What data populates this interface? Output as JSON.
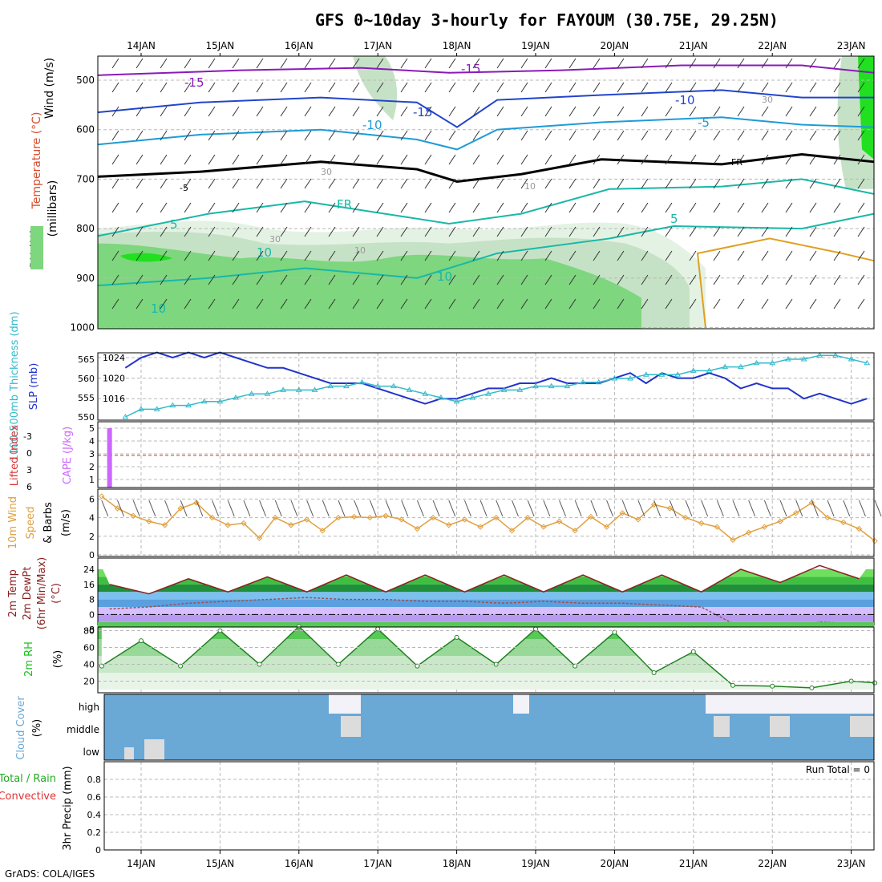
{
  "title": "GFS 0~10day 3-hourly for FAYOUM (30.75E, 29.25N)",
  "footer": "GrADS: COLA/IGES",
  "colors": {
    "rh_light": "#e4f2e4",
    "rh_mid": "#c6e2c6",
    "rh_dark": "#a9cfa9",
    "rh_green": "#7ed67e",
    "rh_bright": "#20e020",
    "temp_purple": "#8a1ab8",
    "temp_blue": "#2244cc",
    "temp_cyan": "#1e9bd6",
    "temp_teal": "#18b8a8",
    "temp_orange": "#e0a020",
    "slp": "#2233cc",
    "thickness": "#33bbcc",
    "cape": "#cc66ff",
    "lifted": "#dd3333",
    "wind10": "#e0a040",
    "temp2m": "#8b2020",
    "dewpt": "#a05050",
    "rh2m": "#20c020",
    "cloud": "#6aa8d6",
    "cloud_white": "#f2f2f8",
    "cloud_gray": "#dcdcdc"
  },
  "charts": {
    "upper": {
      "type": "contour",
      "ylabels": [
        "Wind (m/s)",
        "Temperature (°C)",
        "RH (%)",
        "(millibars)"
      ],
      "levels": [
        500,
        600,
        700,
        800,
        900,
        1000
      ],
      "contour_labels": [
        "-15",
        "-15",
        "-15",
        "-10",
        "-10",
        "-5",
        "-5",
        "FR",
        "FR",
        "5",
        "5",
        "10",
        "10",
        "10",
        "10",
        "30",
        "30",
        "30",
        "10"
      ]
    },
    "slp": {
      "ylabel_left": "1000-500mb Thickness (dm)",
      "ylabel_right": "SLP (mb)",
      "left_ticks": [
        "565",
        "560",
        "555",
        "550"
      ],
      "right_ticks": [
        "1024",
        "1020",
        "1016"
      ]
    },
    "cape": {
      "ylabel_left": "Lifted Index",
      "ylabel_right": "CAPE (J/kg)",
      "left_ticks": [
        "-3",
        "0",
        "3",
        "6"
      ],
      "right_ticks": [
        "5",
        "4",
        "3",
        "2",
        "1"
      ]
    },
    "wind10": {
      "ylabel": [
        "10m Wind",
        "Speed",
        "& Barbs",
        "(m/s)"
      ],
      "ticks": [
        "6",
        "4",
        "2",
        "0"
      ]
    },
    "temp2m": {
      "ylabel": [
        "2m Temp",
        "2m DewPt",
        "(6hr Min/Max)",
        "(°C)"
      ],
      "ticks": [
        "24",
        "16",
        "8",
        "0",
        "-8"
      ]
    },
    "rh2m": {
      "ylabel": [
        "2m RH",
        "(%)"
      ],
      "ticks": [
        "80",
        "60",
        "40",
        "20"
      ]
    },
    "cloud": {
      "ylabel": [
        "Cloud Cover",
        "(%)"
      ],
      "levels": [
        "high",
        "middle",
        "low"
      ]
    },
    "precip": {
      "ylabel": [
        "Total / Rain",
        "Convective",
        "3hr Precip (mm)"
      ],
      "ticks": [
        "0.8",
        "0.6",
        "0.4",
        "0.2",
        "0"
      ],
      "run_total": "Run Total = 0"
    }
  },
  "chart_data": [
    {
      "type": "line",
      "title": "SLP (mb)",
      "x": [
        "13.8",
        "14.0",
        "14.2",
        "14.4",
        "14.6",
        "14.8",
        "15.0",
        "15.2",
        "15.4",
        "15.6",
        "15.8",
        "16.0",
        "16.2",
        "16.4",
        "16.6",
        "16.8",
        "17.0",
        "17.2",
        "17.4",
        "17.6",
        "17.8",
        "18.0",
        "18.2",
        "18.4",
        "18.6",
        "18.8",
        "19.0",
        "19.2",
        "19.4",
        "19.6",
        "19.8",
        "20.0",
        "20.2",
        "20.4",
        "20.6",
        "20.8",
        "21.0",
        "21.2",
        "21.4",
        "21.6",
        "21.8",
        "22.0",
        "22.2",
        "22.4",
        "22.6",
        "22.8",
        "23.0",
        "23.2"
      ],
      "series": [
        {
          "name": "SLP",
          "values": [
            1022,
            1024,
            1025,
            1024,
            1025,
            1024,
            1025,
            1024,
            1023,
            1022,
            1022,
            1021,
            1020,
            1019,
            1019,
            1019,
            1018,
            1017,
            1016,
            1015,
            1016,
            1016,
            1017,
            1018,
            1018,
            1019,
            1019,
            1020,
            1019,
            1019,
            1019,
            1020,
            1021,
            1019,
            1021,
            1020,
            1020,
            1021,
            1020,
            1018,
            1019,
            1018,
            1018,
            1016,
            1017,
            1016,
            1015,
            1016
          ]
        },
        {
          "name": "Thickness",
          "values": [
            550,
            552,
            552,
            553,
            553,
            554,
            554,
            555,
            556,
            556,
            557,
            557,
            557,
            558,
            558,
            559,
            558,
            558,
            557,
            556,
            555,
            554,
            555,
            556,
            557,
            557,
            558,
            558,
            558,
            559,
            559,
            560,
            560,
            561,
            561,
            561,
            562,
            562,
            563,
            563,
            564,
            564,
            565,
            565,
            566,
            566,
            565,
            564
          ]
        }
      ]
    },
    {
      "type": "bar",
      "title": "CAPE (J/kg)",
      "categories": [
        "13.6"
      ],
      "values": [
        5
      ]
    },
    {
      "type": "line",
      "title": "10m Wind Speed (m/s)",
      "x": [
        "13.5",
        "13.7",
        "13.9",
        "14.1",
        "14.3",
        "14.5",
        "14.7",
        "14.9",
        "15.1",
        "15.3",
        "15.5",
        "15.7",
        "15.9",
        "16.1",
        "16.3",
        "16.5",
        "16.7",
        "16.9",
        "17.1",
        "17.3",
        "17.5",
        "17.7",
        "17.9",
        "18.1",
        "18.3",
        "18.5",
        "18.7",
        "18.9",
        "19.1",
        "19.3",
        "19.5",
        "19.7",
        "19.9",
        "20.1",
        "20.3",
        "20.5",
        "20.7",
        "20.9",
        "21.1",
        "21.3",
        "21.5",
        "21.7",
        "21.9",
        "22.1",
        "22.3",
        "22.5",
        "22.7",
        "22.9",
        "23.1",
        "23.3"
      ],
      "series": [
        {
          "name": "Wind speed",
          "values": [
            6.3,
            5,
            4.2,
            3.6,
            3.2,
            5,
            5.6,
            4,
            3.2,
            3.4,
            1.8,
            4,
            3.2,
            3.8,
            2.6,
            4,
            4.1,
            4,
            4.2,
            3.8,
            2.8,
            4,
            3.2,
            3.8,
            3,
            4,
            2.6,
            4,
            3,
            3.6,
            2.6,
            4.1,
            3,
            4.5,
            3.8,
            5.4,
            5,
            4,
            3.4,
            3,
            1.6,
            2.4,
            3,
            3.6,
            4.5,
            5.6,
            4,
            3.5,
            2.8,
            1.5
          ]
        }
      ]
    },
    {
      "type": "line",
      "title": "2m Temp / DewPt (°C)",
      "x": [
        "13.6",
        "14.1",
        "14.6",
        "15.1",
        "15.6",
        "16.1",
        "16.6",
        "17.1",
        "17.6",
        "18.1",
        "18.6",
        "19.1",
        "19.6",
        "20.1",
        "20.6",
        "21.1",
        "21.6",
        "22.1",
        "22.6",
        "23.1"
      ],
      "series": [
        {
          "name": "Temp",
          "values": [
            16,
            11,
            19,
            12,
            20,
            12,
            21,
            12,
            21,
            12,
            21,
            12,
            21,
            12,
            21,
            12,
            24,
            17,
            26,
            19
          ]
        },
        {
          "name": "DewPt",
          "values": [
            3,
            4,
            6,
            7,
            8,
            9,
            8,
            8,
            7,
            7,
            6,
            7,
            6,
            6,
            5,
            4,
            -7,
            -9,
            -4,
            -5
          ]
        }
      ]
    },
    {
      "type": "area",
      "title": "2m RH (%)",
      "x": [
        "13.5",
        "14.0",
        "14.5",
        "15.0",
        "15.5",
        "16.0",
        "16.5",
        "17.0",
        "17.5",
        "18.0",
        "18.5",
        "19.0",
        "19.5",
        "20.0",
        "20.5",
        "21.0",
        "21.5",
        "22.0",
        "22.5",
        "23.0",
        "23.3"
      ],
      "series": [
        {
          "name": "RH",
          "values": [
            38,
            68,
            38,
            80,
            40,
            85,
            40,
            82,
            38,
            72,
            40,
            82,
            38,
            78,
            30,
            55,
            15,
            14,
            12,
            20,
            18
          ]
        }
      ]
    }
  ],
  "x_axis": {
    "dates": [
      "14JAN",
      "15JAN",
      "16JAN",
      "17JAN",
      "18JAN",
      "19JAN",
      "20JAN",
      "21JAN",
      "22JAN",
      "23JAN"
    ]
  }
}
